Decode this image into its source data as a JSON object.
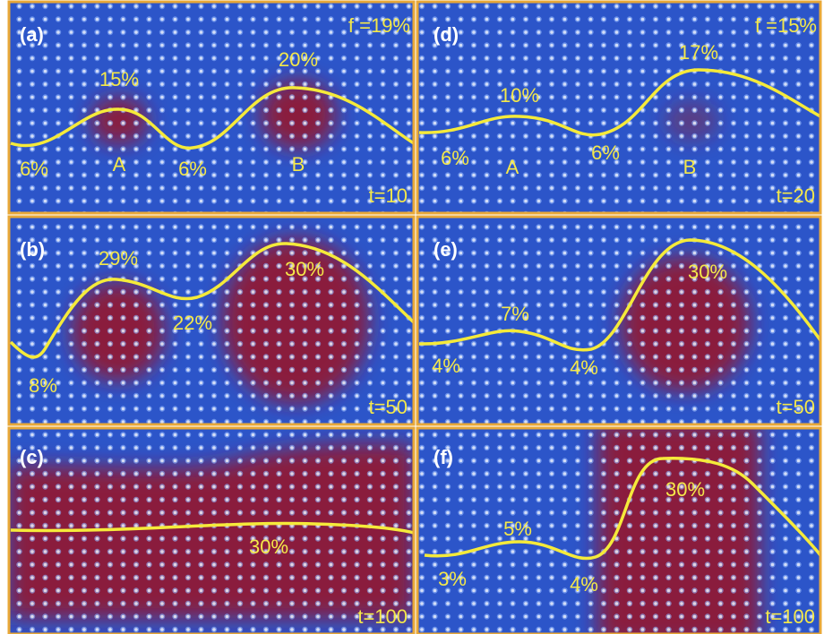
{
  "panels": [
    {
      "label": "(a)",
      "fraction": "f =19%",
      "time": "t=10",
      "annotations": [
        "15%",
        "20%",
        "6%",
        "A",
        "6%",
        "B"
      ]
    },
    {
      "label": "(b)",
      "time": "t=50",
      "annotations": [
        "29%",
        "30%",
        "22%",
        "8%"
      ]
    },
    {
      "label": "(c)",
      "time": "t=100",
      "annotations": [
        "30%"
      ]
    },
    {
      "label": "(d)",
      "fraction": "f =15%",
      "time": "t=20",
      "annotations": [
        "10%",
        "17%",
        "6%",
        "A",
        "6%",
        "B"
      ]
    },
    {
      "label": "(e)",
      "time": "t=50",
      "annotations": [
        "7%",
        "30%",
        "4%",
        "4%"
      ]
    },
    {
      "label": "(f)",
      "time": "t=100",
      "annotations": [
        "5%",
        "30%",
        "3%",
        "4%"
      ]
    }
  ]
}
